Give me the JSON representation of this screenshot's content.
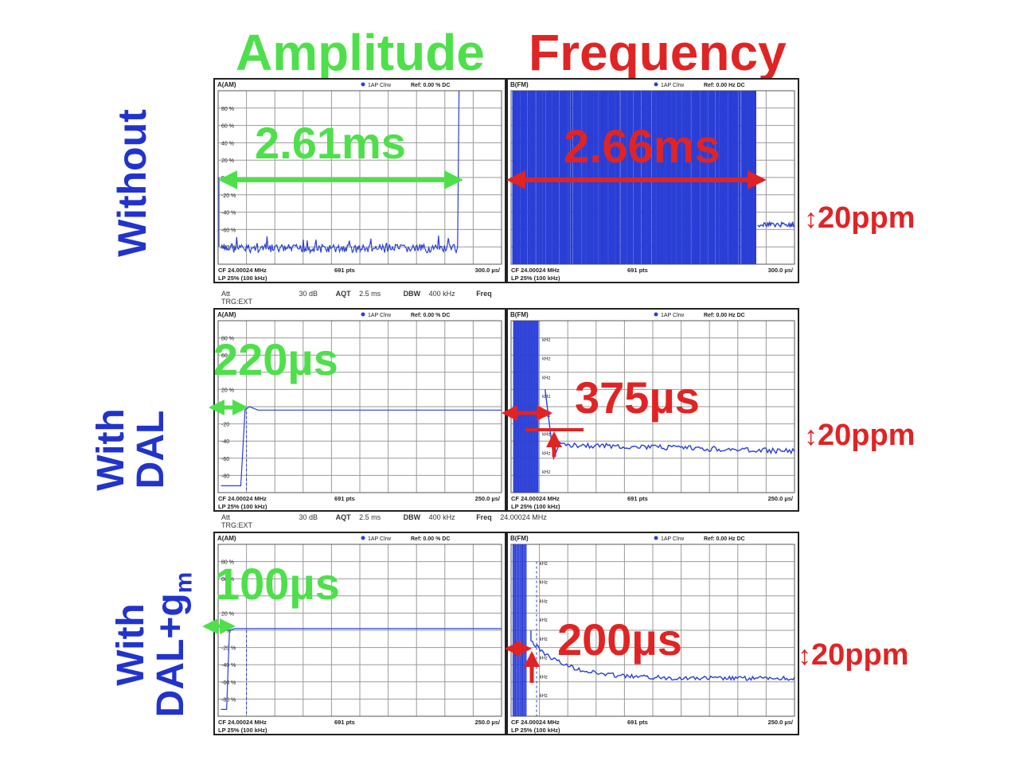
{
  "titles": {
    "amplitude": "Amplitude",
    "frequency": "Frequency"
  },
  "rows": [
    {
      "label_lines": [
        "Without"
      ]
    },
    {
      "label_lines": [
        "With",
        "DAL"
      ]
    },
    {
      "label_lines": [
        "With",
        "DAL+g",
        "m"
      ]
    }
  ],
  "colors": {
    "amplitude": "#4ee04a",
    "frequency": "#e02424",
    "trace": "#2a3fd6",
    "label": "#2233cc"
  },
  "annotations": {
    "row1_amp": "2.61ms",
    "row1_freq": "2.66ms",
    "row2_amp": "220µs",
    "row2_freq": "375µs",
    "row3_amp": "100µs",
    "row3_freq": "200µs",
    "ppm": "20ppm"
  },
  "analyzer": {
    "amp_header": "A(AM)",
    "freq_header": "B(FM)",
    "trace_tag": "1AP Clrw",
    "amp_ref": "Ref: 0.00 %  DC",
    "freq_ref": "Ref: 0.00 Hz  DC",
    "footer_cf": "CF 24.00024 MHz",
    "footer_lp": "LP 25% (100 kHz)",
    "footer_pts": "691 pts",
    "footer_div_row1": "300.0 µs/",
    "footer_div_row23": "250.0 µs/",
    "amp_ticks": [
      "80 %",
      "60 %",
      "40 %",
      "20 %",
      "0 %",
      "-20 %",
      "-40 %",
      "-60 %",
      "-80 %"
    ],
    "amp_ticks_r2": [
      "80 %",
      "60 %",
      "40 %",
      "20 %",
      "0",
      "-20",
      "-40",
      "-60",
      "-80"
    ],
    "info_att": "Att",
    "info_att_val": "30 dB",
    "info_aqt": "AQT",
    "info_aqt_val": "2.5 ms",
    "info_dbw": "DBW",
    "info_dbw_val": "400 kHz",
    "info_freq": "Freq",
    "info_freq_val": "24.00024 MHz",
    "info_trg": "TRG:EXT",
    "freq_tick_label": "kHz"
  },
  "chart_data": [
    {
      "type": "line",
      "panel": "amplitude-without",
      "ylim": [
        -100,
        100
      ],
      "ylabel": "%",
      "xlabel": "300.0 µs/div",
      "annotation": "2.61ms",
      "description_values": {
        "settle_ms": 2.61
      }
    },
    {
      "type": "line",
      "panel": "frequency-without",
      "ylabel": "Hz",
      "xlabel": "300.0 µs/div",
      "annotation": "2.66ms",
      "description_values": {
        "settle_ms": 2.66,
        "band": "20ppm"
      }
    },
    {
      "type": "line",
      "panel": "amplitude-with-dal",
      "ylim": [
        -100,
        100
      ],
      "xlabel": "250.0 µs/div",
      "annotation": "220µs",
      "description_values": {
        "settle_us": 220
      }
    },
    {
      "type": "line",
      "panel": "frequency-with-dal",
      "xlabel": "250.0 µs/div",
      "annotation": "375µs",
      "description_values": {
        "settle_us": 375,
        "band": "20ppm"
      }
    },
    {
      "type": "line",
      "panel": "amplitude-with-dal-gm",
      "ylim": [
        -100,
        100
      ],
      "xlabel": "250.0 µs/div",
      "annotation": "100µs",
      "description_values": {
        "settle_us": 100
      }
    },
    {
      "type": "line",
      "panel": "frequency-with-dal-gm",
      "xlabel": "250.0 µs/div",
      "annotation": "200µs",
      "description_values": {
        "settle_us": 200,
        "band": "20ppm"
      }
    }
  ]
}
